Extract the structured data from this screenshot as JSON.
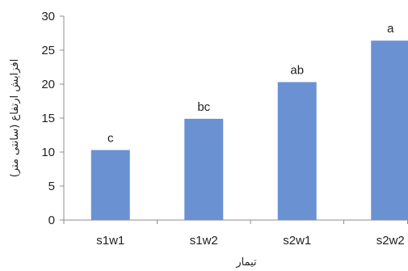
{
  "chart_data": {
    "type": "bar",
    "title": "",
    "xlabel": "تیمار",
    "ylabel": "افزایش ارتفاع (سانتی متر)",
    "categories": [
      "s1w1",
      "s1w2",
      "s2w1",
      "s2w2"
    ],
    "values": [
      10.3,
      14.9,
      20.3,
      26.4
    ],
    "significance_labels": [
      "c",
      "bc",
      "ab",
      "a"
    ],
    "ylim": [
      0,
      30
    ],
    "yticks": [
      "0",
      "5",
      "10",
      "15",
      "20",
      "25",
      "30"
    ],
    "grid": false,
    "legend": "none",
    "colors": {
      "bar": "#6a92d2",
      "axis": "#8c8c8c",
      "text": "#222222"
    }
  }
}
